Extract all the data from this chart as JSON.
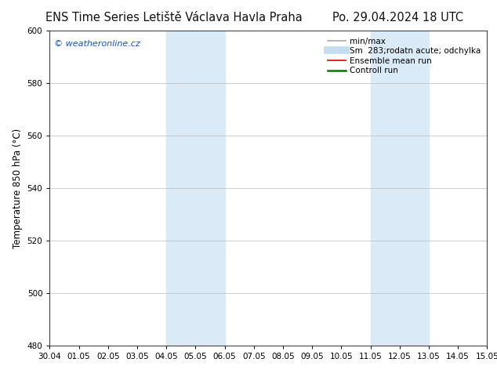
{
  "title_left": "ENS Time Series Letiště Václava Havla Praha",
  "title_right": "Po. 29.04.2024 18 UTC",
  "ylabel": "Temperature 850 hPa (°C)",
  "watermark": "© weatheronline.cz",
  "watermark_color": "#1155cc",
  "ylim": [
    480,
    600
  ],
  "yticks": [
    480,
    500,
    520,
    540,
    560,
    580,
    600
  ],
  "xtick_labels": [
    "30.04",
    "01.05",
    "02.05",
    "03.05",
    "04.05",
    "05.05",
    "06.05",
    "07.05",
    "08.05",
    "09.05",
    "10.05",
    "11.05",
    "12.05",
    "13.05",
    "14.05",
    "15.05"
  ],
  "shaded_regions": [
    {
      "xstart": 4,
      "xend": 6,
      "color": "#daeaf7"
    },
    {
      "xstart": 11,
      "xend": 13,
      "color": "#daeaf7"
    }
  ],
  "legend_entries": [
    {
      "label": "min/max",
      "color": "#aaaaaa",
      "lw": 1.2
    },
    {
      "label": "Sm  283;rodatn acute; odchylka",
      "color": "#c5ddf0",
      "lw": 7
    },
    {
      "label": "Ensemble mean run",
      "color": "#dd0000",
      "lw": 1.2
    },
    {
      "label": "Controll run",
      "color": "#007700",
      "lw": 1.8
    }
  ],
  "background_color": "#ffffff",
  "plot_bg_color": "#ffffff",
  "grid_color": "#bbbbbb",
  "spine_color": "#444444",
  "title_fontsize": 10.5,
  "tick_fontsize": 7.5,
  "ylabel_fontsize": 8.5,
  "legend_fontsize": 7.5,
  "watermark_fontsize": 8
}
